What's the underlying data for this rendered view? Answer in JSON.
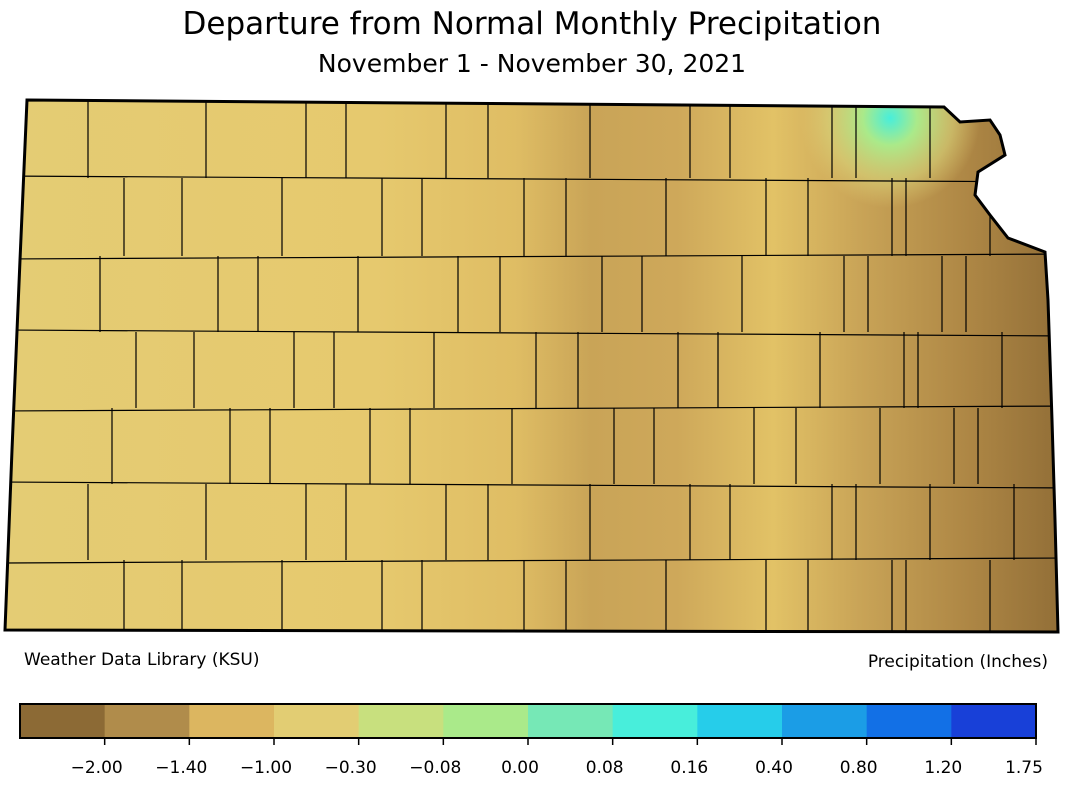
{
  "header": {
    "title": "Departure from Normal Monthly Precipitation",
    "subtitle": "November 1 - November 30, 2021"
  },
  "credit": "Weather Data Library (KSU)",
  "units_label": "Precipitation (Inches)",
  "colorbar": {
    "colors": [
      "#8c6a35",
      "#b08c4b",
      "#dcb660",
      "#e2cd73",
      "#c8e07e",
      "#aaea8a",
      "#76e8b6",
      "#48eedb",
      "#26cdea",
      "#1b9de6",
      "#1270e6",
      "#1840d8"
    ],
    "ticks": [
      {
        "value": -2,
        "label": "−2.00"
      },
      {
        "value": -1.4,
        "label": "−1.40"
      },
      {
        "value": -1,
        "label": "−1.00"
      },
      {
        "value": -0.3,
        "label": "−0.30"
      },
      {
        "value": -0.08,
        "label": "−0.08"
      },
      {
        "value": 0,
        "label": "0.00"
      },
      {
        "value": 0.08,
        "label": "0.08"
      },
      {
        "value": 0.16,
        "label": "0.16"
      },
      {
        "value": 0.4,
        "label": "0.40"
      },
      {
        "value": 0.8,
        "label": "0.80"
      },
      {
        "value": 1.2,
        "label": "1.20"
      },
      {
        "value": 1.75,
        "label": "1.75"
      }
    ]
  }
}
